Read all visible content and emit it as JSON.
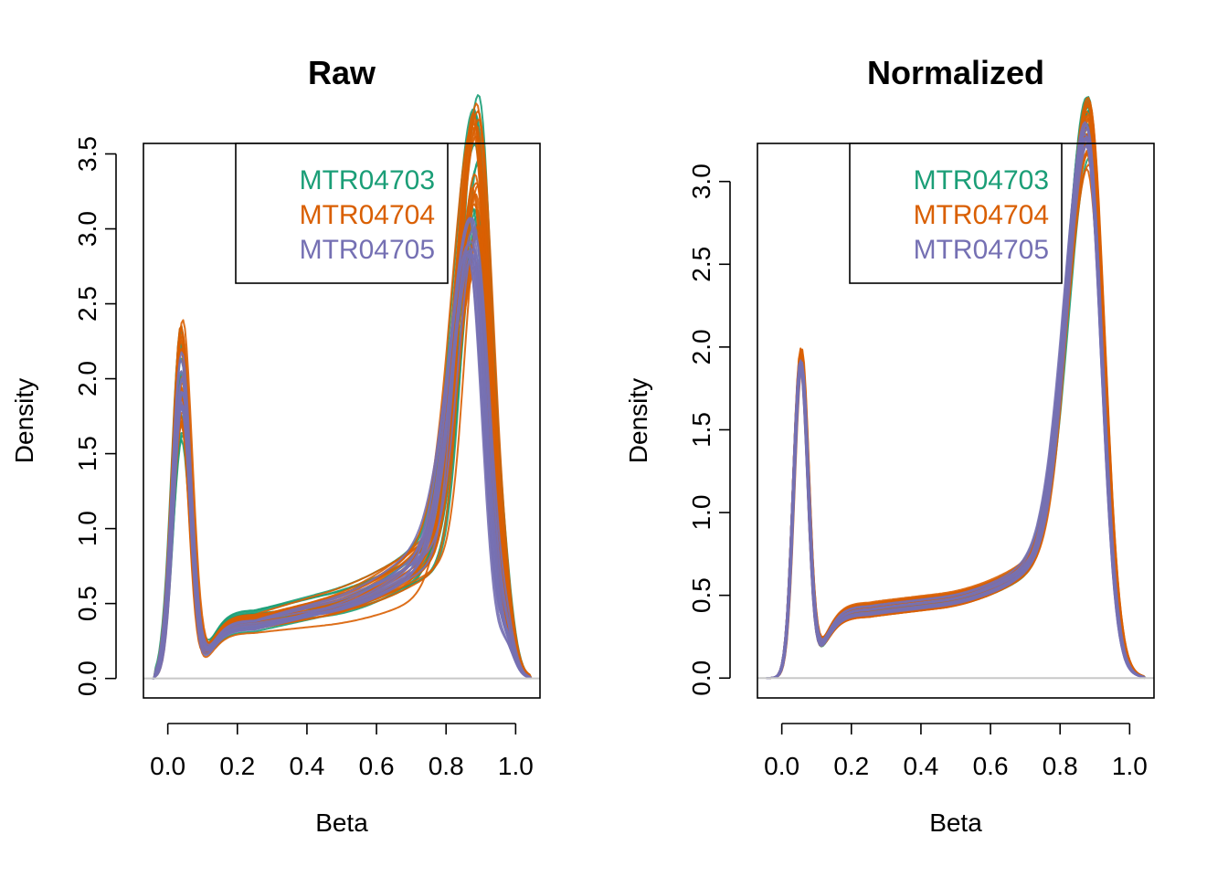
{
  "colors": {
    "MTR04703": "#1b9e77",
    "MTR04704": "#d95f02",
    "MTR04705": "#7570b3",
    "zero_line": "#c8c8c8"
  },
  "chart_data": [
    {
      "type": "line",
      "title": "Raw",
      "xlabel": "Beta",
      "ylabel": "Density",
      "xlim": [
        -0.07,
        1.07
      ],
      "ylim": [
        -0.13,
        3.57
      ],
      "xticks": [
        "0.0",
        "0.2",
        "0.4",
        "0.6",
        "0.8",
        "1.0"
      ],
      "yticks": [
        "0.0",
        "0.5",
        "1.0",
        "1.5",
        "2.0",
        "2.5",
        "3.0",
        "3.5"
      ],
      "legend": {
        "position": "top-right",
        "entries": [
          "MTR04703",
          "MTR04704",
          "MTR04705"
        ]
      },
      "series": [
        {
          "name": "MTR04703",
          "n_curves": 14,
          "peak1_x": 0.04,
          "peak1_y_range": [
            1.85,
            2.55
          ],
          "trough_y_range": [
            0.31,
            0.47
          ],
          "peak2_x": 0.885,
          "peak2_y_range": [
            2.22,
            3.42
          ]
        },
        {
          "name": "MTR04704",
          "n_curves": 22,
          "peak1_x": 0.04,
          "peak1_y_range": [
            1.9,
            2.6
          ],
          "trough_y_range": [
            0.3,
            0.43
          ],
          "peak2_x": 0.885,
          "peak2_y_range": [
            2.25,
            3.3
          ]
        },
        {
          "name": "MTR04705",
          "n_curves": 12,
          "peak1_x": 0.04,
          "peak1_y_range": [
            2.0,
            2.45
          ],
          "trough_y_range": [
            0.32,
            0.4
          ],
          "peak2_x": 0.87,
          "peak2_y_range": [
            2.3,
            2.6
          ]
        }
      ]
    },
    {
      "type": "line",
      "title": "Normalized",
      "xlabel": "Beta",
      "ylabel": "Density",
      "xlim": [
        -0.07,
        1.07
      ],
      "ylim": [
        -0.12,
        3.23
      ],
      "xticks": [
        "0.0",
        "0.2",
        "0.4",
        "0.6",
        "0.8",
        "1.0"
      ],
      "yticks": [
        "0.0",
        "0.5",
        "1.0",
        "1.5",
        "2.0",
        "2.5",
        "3.0"
      ],
      "legend": {
        "position": "top-right",
        "entries": [
          "MTR04703",
          "MTR04704",
          "MTR04705"
        ]
      },
      "series": [
        {
          "name": "MTR04703",
          "n_curves": 14,
          "peak1_x": 0.055,
          "peak1_y_range": [
            2.1,
            2.18
          ],
          "trough_y_range": [
            0.37,
            0.45
          ],
          "peak2_x": 0.88,
          "peak2_y_range": [
            2.7,
            3.08
          ]
        },
        {
          "name": "MTR04704",
          "n_curves": 22,
          "peak1_x": 0.055,
          "peak1_y_range": [
            2.1,
            2.2
          ],
          "trough_y_range": [
            0.37,
            0.46
          ],
          "peak2_x": 0.88,
          "peak2_y_range": [
            2.62,
            3.1
          ]
        },
        {
          "name": "MTR04705",
          "n_curves": 12,
          "peak1_x": 0.055,
          "peak1_y_range": [
            2.08,
            2.15
          ],
          "trough_y_range": [
            0.38,
            0.44
          ],
          "peak2_x": 0.875,
          "peak2_y_range": [
            2.8,
            2.95
          ]
        }
      ]
    }
  ]
}
